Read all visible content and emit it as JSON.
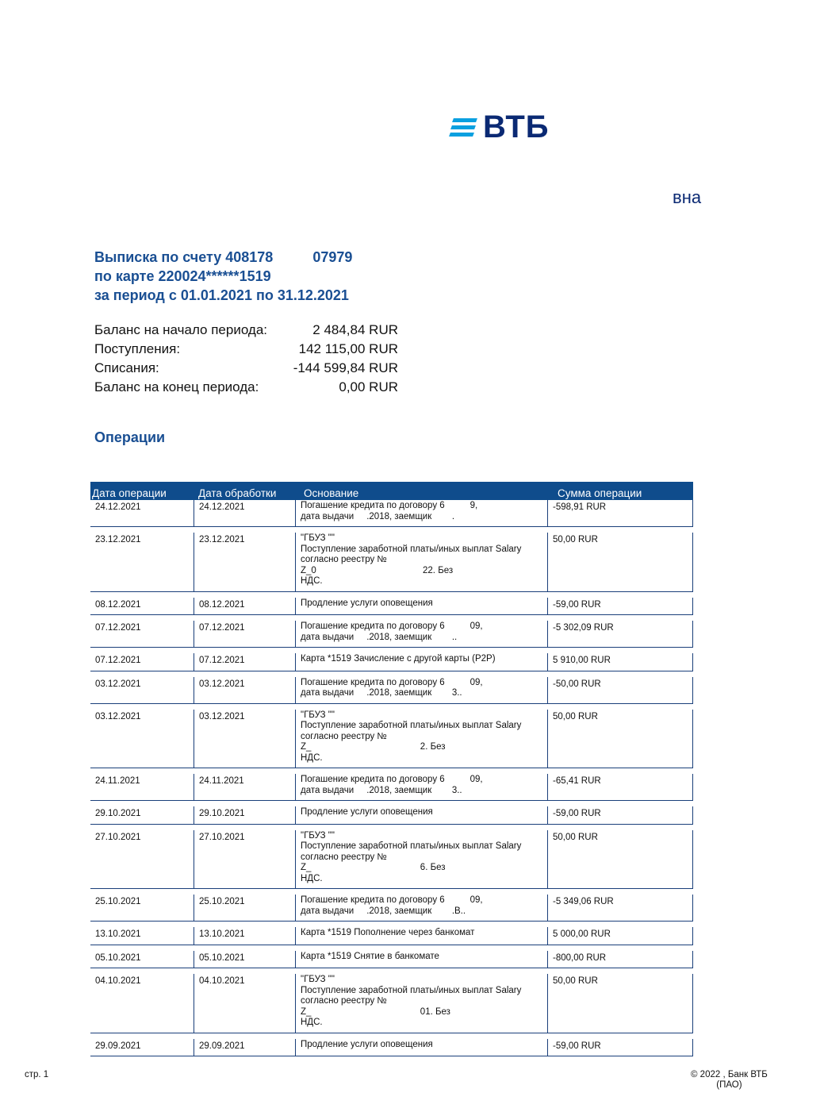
{
  "bank": {
    "logo_text": "ВТБ",
    "owner_visible": "вна",
    "accent": "#0f4c8c"
  },
  "statement": {
    "line1": "Выписка по счету 408178          07979",
    "line2": "по карте 220024******1519",
    "line3": "за период с 01.01.2021 по 31.12.2021"
  },
  "summary": [
    {
      "label": "Баланс на начало периода:",
      "value": "2 484,84 RUR"
    },
    {
      "label": "Поступления:",
      "value": "142 115,00 RUR"
    },
    {
      "label": "Списания:",
      "value": "-144 599,84 RUR"
    },
    {
      "label": "Баланс на конец периода:",
      "value": "0,00 RUR"
    }
  ],
  "operations_title": "Операции",
  "table": {
    "headers": [
      "Дата операции",
      "Дата обработки",
      "Основание",
      "Сумма операции"
    ],
    "rows": [
      {
        "op": "24.12.2021",
        "proc": "24.12.2021",
        "basis": [
          "Погашение кредита по договору 6          9,",
          "дата выдачи     .2018, заемщик        ."
        ],
        "amount": "-598,91 RUR"
      },
      {
        "op": "23.12.2021",
        "proc": "23.12.2021",
        "basis": [
          "\"ГБУЗ \"\"",
          "Поступление заработной платы/иных выплат Salary",
          "согласно реестру №",
          "Z_0                                          22. Без",
          "НДС."
        ],
        "amount": "50,00 RUR"
      },
      {
        "op": "08.12.2021",
        "proc": "08.12.2021",
        "basis": [
          "Продление услуги оповещения"
        ],
        "amount": "-59,00 RUR"
      },
      {
        "op": "07.12.2021",
        "proc": "07.12.2021",
        "basis": [
          "Погашение кредита по договору 6          09,",
          "дата выдачи     .2018, заемщик        .."
        ],
        "amount": "-5 302,09 RUR"
      },
      {
        "op": "07.12.2021",
        "proc": "07.12.2021",
        "basis": [
          "Карта *1519 Зачисление с другой карты (P2P)"
        ],
        "amount": "5 910,00 RUR"
      },
      {
        "op": "03.12.2021",
        "proc": "03.12.2021",
        "basis": [
          "Погашение кредита по договору 6          09,",
          "дата выдачи     .2018, заемщик        3.."
        ],
        "amount": "-50,00 RUR"
      },
      {
        "op": "03.12.2021",
        "proc": "03.12.2021",
        "basis": [
          "\"ГБУЗ \"\"",
          "Поступление заработной платы/иных выплат Salary",
          "согласно реестру №",
          "Z_                                           2. Без",
          "НДС."
        ],
        "amount": "50,00 RUR"
      },
      {
        "op": "24.11.2021",
        "proc": "24.11.2021",
        "basis": [
          "Погашение кредита по договору 6          09,",
          "дата выдачи     .2018, заемщик        3.."
        ],
        "amount": "-65,41 RUR"
      },
      {
        "op": "29.10.2021",
        "proc": "29.10.2021",
        "basis": [
          "Продление услуги оповещения"
        ],
        "amount": "-59,00 RUR"
      },
      {
        "op": "27.10.2021",
        "proc": "27.10.2021",
        "basis": [
          "\"ГБУЗ \"\"",
          "Поступление заработной платы/иных выплат Salary",
          "согласно реестру №",
          "Z_                                           6. Без",
          "НДС."
        ],
        "amount": "50,00 RUR"
      },
      {
        "op": "25.10.2021",
        "proc": "25.10.2021",
        "basis": [
          "Погашение кредита по договору 6          09,",
          "дата выдачи     .2018, заемщик        .В.."
        ],
        "amount": "-5 349,06 RUR"
      },
      {
        "op": "13.10.2021",
        "proc": "13.10.2021",
        "basis": [
          "Карта *1519 Пополнение через банкомат"
        ],
        "amount": "5 000,00 RUR"
      },
      {
        "op": "05.10.2021",
        "proc": "05.10.2021",
        "basis": [
          "Карта *1519 Снятие в банкомате"
        ],
        "amount": "-800,00 RUR"
      },
      {
        "op": "04.10.2021",
        "proc": "04.10.2021",
        "basis": [
          "\"ГБУЗ \"\"",
          "Поступление заработной платы/иных выплат Salary",
          "согласно реестру №",
          "Z_                                           01. Без",
          "НДС."
        ],
        "amount": "50,00 RUR"
      },
      {
        "op": "29.09.2021",
        "proc": "29.09.2021",
        "basis": [
          "Продление услуги оповещения"
        ],
        "amount": "-59,00 RUR"
      }
    ]
  },
  "footer": {
    "page": "стр.  1",
    "copyright_line1": "©  2022 , Банк ВТБ",
    "copyright_line2": "(ПАО)"
  }
}
